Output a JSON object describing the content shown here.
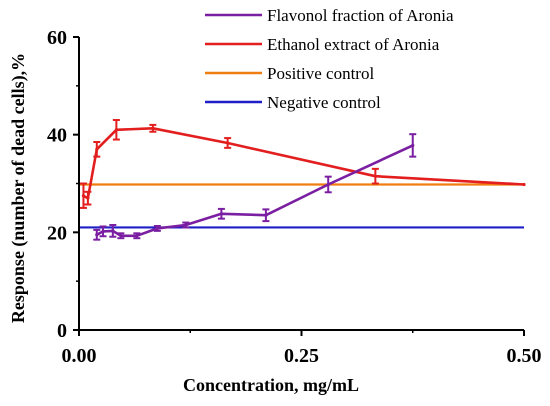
{
  "chart_data": {
    "type": "line",
    "xlabel": "Concentration, mg/mL",
    "ylabel": "Response (number of dead cells),%",
    "xlim": [
      0,
      0.5
    ],
    "ylim": [
      0,
      60
    ],
    "x_ticks": [
      0.0,
      0.25,
      0.5
    ],
    "x_tick_labels": [
      "0.00",
      "0.25",
      "0.50"
    ],
    "y_ticks": [
      0,
      20,
      40,
      60
    ],
    "y_tick_labels": [
      "0",
      "20",
      "40",
      "60"
    ],
    "grid": false,
    "legend_position": "top-right",
    "series": [
      {
        "name": "Flavonol fraction of Aronia",
        "color": "#7B1FA2",
        "kind": "line",
        "x": [
          0.02,
          0.027,
          0.038,
          0.047,
          0.065,
          0.088,
          0.12,
          0.16,
          0.21,
          0.28,
          0.375
        ],
        "y": [
          19.5,
          20.2,
          20.3,
          19.3,
          19.3,
          20.8,
          21.5,
          23.8,
          23.5,
          29.8,
          37.8
        ],
        "err": [
          1.0,
          1.0,
          1.2,
          0.5,
          0.5,
          0.5,
          0.5,
          1.0,
          1.2,
          1.6,
          2.3
        ]
      },
      {
        "name": "Ethanol extract of Aronia",
        "color": "#E31E1E",
        "kind": "line",
        "x": [
          0.005,
          0.01,
          0.02,
          0.042,
          0.083,
          0.167,
          0.333,
          0.5
        ],
        "y": [
          27.5,
          27.0,
          37.0,
          41.0,
          41.3,
          38.3,
          31.5,
          29.8
        ],
        "err": [
          2.5,
          1.3,
          1.5,
          2.0,
          0.7,
          1.0,
          1.5,
          0
        ]
      },
      {
        "name": "Positive control",
        "color": "#F07D10",
        "kind": "hline",
        "y": 29.8
      },
      {
        "name": "Negative control",
        "color": "#1F1FC8",
        "kind": "hline",
        "y": 21.0
      }
    ]
  }
}
